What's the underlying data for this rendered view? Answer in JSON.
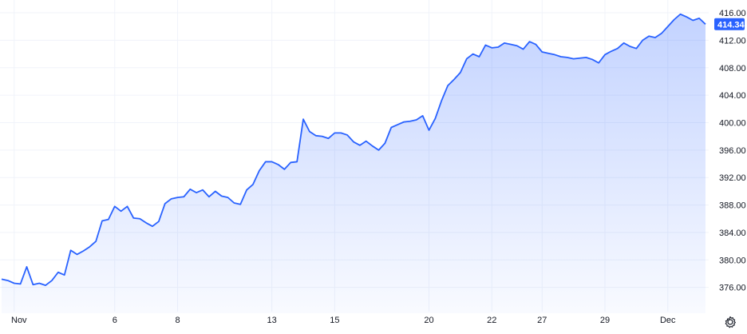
{
  "chart_data": {
    "type": "area",
    "title": "",
    "xlabel": "",
    "ylabel": "",
    "ylim": [
      373.4,
      417.4
    ],
    "y_ticks": [
      "416.00",
      "412.00",
      "408.00",
      "404.00",
      "400.00",
      "396.00",
      "392.00",
      "388.00",
      "384.00",
      "380.00",
      "376.00"
    ],
    "x_ticks": [
      {
        "label": "Nov",
        "i": 2
      },
      {
        "label": "6",
        "i": 18
      },
      {
        "label": "8",
        "i": 28
      },
      {
        "label": "13",
        "i": 43
      },
      {
        "label": "15",
        "i": 53
      },
      {
        "label": "20",
        "i": 68
      },
      {
        "label": "22",
        "i": 78
      },
      {
        "label": "27",
        "i": 86
      },
      {
        "label": "29",
        "i": 96
      },
      {
        "label": "Dec",
        "i": 106
      }
    ],
    "last_price_label": "414.34",
    "grid": true,
    "series": [
      {
        "values": [
          377.2,
          377.0,
          376.6,
          376.5,
          379.0,
          376.4,
          376.6,
          376.3,
          377.0,
          378.2,
          377.8,
          381.4,
          380.8,
          381.3,
          381.9,
          382.7,
          385.7,
          385.9,
          387.8,
          387.1,
          387.8,
          386.1,
          386.0,
          385.4,
          384.9,
          385.6,
          388.2,
          388.9,
          389.1,
          389.2,
          390.3,
          389.8,
          390.2,
          389.2,
          390.0,
          389.3,
          389.1,
          388.3,
          388.1,
          390.2,
          391.0,
          393.0,
          394.3,
          394.3,
          393.9,
          393.2,
          394.2,
          394.3,
          400.5,
          398.7,
          398.1,
          398.0,
          397.7,
          398.5,
          398.5,
          398.2,
          397.2,
          396.7,
          397.3,
          396.6,
          396.0,
          397.0,
          399.3,
          399.7,
          400.1,
          400.2,
          400.4,
          401.0,
          398.9,
          400.6,
          403.2,
          405.4,
          406.3,
          407.3,
          409.3,
          410.0,
          409.6,
          411.3,
          410.9,
          411.0,
          411.6,
          411.4,
          411.2,
          410.7,
          411.8,
          411.4,
          410.3,
          410.1,
          409.9,
          409.6,
          409.5,
          409.3,
          409.4,
          409.5,
          409.2,
          408.7,
          409.9,
          410.4,
          410.8,
          411.6,
          411.1,
          410.8,
          412.0,
          412.6,
          412.4,
          413.0,
          414.0,
          415.0,
          415.8,
          415.4,
          414.9,
          415.2,
          414.34
        ]
      }
    ],
    "colors": {
      "line": "#2962FF",
      "fill_top": "#2962FF",
      "fill_top_opacity": 0.28,
      "fill_bottom_opacity": 0.03,
      "grid": "#F0F3FA",
      "price_tag": "#2962FF"
    }
  },
  "controls": {
    "settings_icon": "gear-icon"
  }
}
